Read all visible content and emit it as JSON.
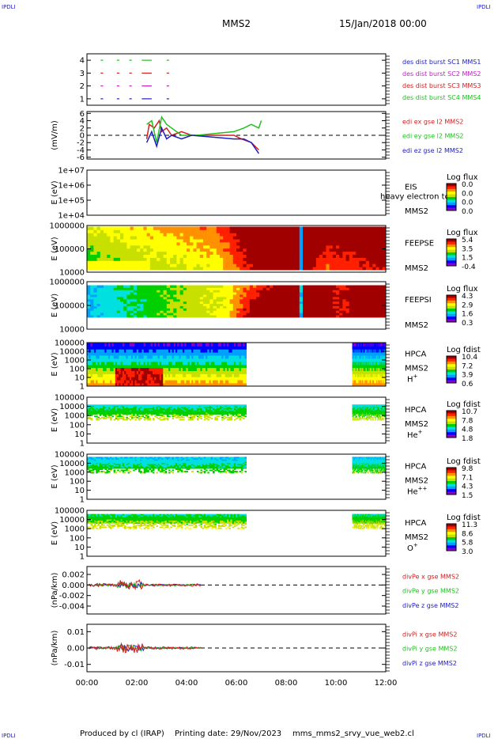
{
  "header": {
    "corner_tag": "IPDLI",
    "mission": "MMS2",
    "datetime": "15/Jan/2018 00:00"
  },
  "footer": {
    "produced_by": "Produced by cl (IRAP)",
    "printing_date": "Printing date: 29/Nov/2023",
    "script_name": "mms_mms2_srvy_vue_web2.cl"
  },
  "colorbar_colors": [
    "#8a00c8",
    "#0000ff",
    "#00a0ff",
    "#00e0e0",
    "#00d000",
    "#c8e000",
    "#ffff00",
    "#ff9000",
    "#ff2000",
    "#a00000"
  ],
  "time_axis": {
    "ticks": [
      "00:00",
      "02:00",
      "04:00",
      "06:00",
      "08:00",
      "10:00",
      "12:00"
    ],
    "range_hours": [
      0,
      12
    ]
  },
  "chart_data": [
    {
      "type": "scatter",
      "panel": "burst",
      "yticks": [
        "4",
        "3",
        "2",
        "1"
      ],
      "ylim": [
        0.5,
        4.5
      ],
      "legend": [
        {
          "label": "des dist burst SC1 MMS1",
          "color": "#2020c0"
        },
        {
          "label": "des dist burst SC2 MMS2",
          "color": "#c020c0"
        },
        {
          "label": "des dist burst SC3 MMS3",
          "color": "#d02020"
        },
        {
          "label": "des dist burst SC4 MMS4",
          "color": "#20c020"
        }
      ],
      "series": [
        {
          "level": 1,
          "color": "#2020c0",
          "segments": [
            [
              0.55,
              0.65
            ],
            [
              1.2,
              1.3
            ],
            [
              1.7,
              1.8
            ],
            [
              2.2,
              2.6
            ],
            [
              3.2,
              3.3
            ]
          ]
        },
        {
          "level": 2,
          "color": "#c020c0",
          "segments": [
            [
              0.55,
              0.65
            ],
            [
              1.2,
              1.3
            ],
            [
              1.7,
              1.8
            ],
            [
              2.2,
              2.6
            ],
            [
              3.2,
              3.3
            ]
          ]
        },
        {
          "level": 3,
          "color": "#d02020",
          "segments": [
            [
              0.55,
              0.65
            ],
            [
              1.2,
              1.3
            ],
            [
              1.7,
              1.8
            ],
            [
              2.2,
              2.6
            ],
            [
              3.2,
              3.3
            ]
          ]
        },
        {
          "level": 4,
          "color": "#20c020",
          "segments": [
            [
              0.55,
              0.65
            ],
            [
              1.2,
              1.3
            ],
            [
              1.7,
              1.8
            ],
            [
              2.2,
              2.6
            ],
            [
              3.2,
              3.3
            ]
          ]
        }
      ]
    },
    {
      "type": "line",
      "panel": "edi",
      "ylabel": "(mV/m)",
      "yticks": [
        "6",
        "4",
        "2",
        "0",
        "-2",
        "-4",
        "-6"
      ],
      "ylim": [
        -6.5,
        6.5
      ],
      "legend": [
        {
          "label": "edi ex gse l2 MMS2",
          "color": "#d02020"
        },
        {
          "label": "edi ey gse l2 MMS2",
          "color": "#20c020"
        },
        {
          "label": "edi ez gse l2 MMS2",
          "color": "#2020c0"
        }
      ],
      "series": [
        {
          "name": "ex",
          "color": "#d02020",
          "points": [
            [
              2.4,
              -1
            ],
            [
              2.5,
              3
            ],
            [
              2.7,
              2
            ],
            [
              2.9,
              4
            ],
            [
              3.0,
              1
            ],
            [
              3.2,
              2
            ],
            [
              3.4,
              0
            ],
            [
              3.8,
              1
            ],
            [
              4.2,
              0
            ],
            [
              5.9,
              0
            ],
            [
              6.2,
              -1
            ],
            [
              6.6,
              -2
            ],
            [
              6.9,
              -4
            ]
          ]
        },
        {
          "name": "ey",
          "color": "#20c020",
          "points": [
            [
              2.4,
              3
            ],
            [
              2.6,
              4
            ],
            [
              2.8,
              -2
            ],
            [
              3.0,
              5
            ],
            [
              3.2,
              3
            ],
            [
              3.4,
              2
            ],
            [
              3.8,
              0
            ],
            [
              4.4,
              0
            ],
            [
              5.9,
              1
            ],
            [
              6.3,
              2
            ],
            [
              6.6,
              3
            ],
            [
              6.9,
              2
            ],
            [
              7.0,
              4
            ]
          ]
        },
        {
          "name": "ez",
          "color": "#2020c0",
          "points": [
            [
              2.4,
              -2
            ],
            [
              2.6,
              1
            ],
            [
              2.8,
              -3
            ],
            [
              3.0,
              2
            ],
            [
              3.2,
              -1
            ],
            [
              3.4,
              0
            ],
            [
              3.8,
              -1
            ],
            [
              4.2,
              0
            ],
            [
              5.9,
              -1
            ],
            [
              6.3,
              -1
            ],
            [
              6.6,
              -2
            ],
            [
              6.9,
              -5
            ]
          ]
        }
      ]
    },
    {
      "type": "heatmap",
      "panel": "eis",
      "ylabel": "E (eV)",
      "yticks": [
        "1e+07",
        "1e+06",
        "1e+05",
        "1e+04"
      ],
      "label": "EIS",
      "overlay": "heavy electron to",
      "sublabel": "MMS2",
      "colorbar_title": "Log flux",
      "colorbar_ticks": [
        "0.0",
        "0.0",
        "0.0",
        "0.0"
      ]
    },
    {
      "type": "heatmap",
      "panel": "feepse",
      "ylabel": "E (eV)",
      "yticks": [
        "1000000",
        "100000",
        "10000"
      ],
      "label": "FEEPSE",
      "sublabel": "MMS2",
      "colorbar_title": "Log flux",
      "colorbar_ticks": [
        "5.4",
        "3.5",
        "1.5",
        "-0.4"
      ]
    },
    {
      "type": "heatmap",
      "panel": "feepsi",
      "ylabel": "E (eV)",
      "yticks": [
        "1000000",
        "100000",
        "10000"
      ],
      "label": "FEEPSI",
      "sublabel": "MMS2",
      "colorbar_title": "Log flux",
      "colorbar_ticks": [
        "4.3",
        "2.9",
        "1.6",
        "0.3"
      ]
    },
    {
      "type": "heatmap",
      "panel": "hpca_h",
      "ylabel": "E (eV)",
      "yticks": [
        "100000",
        "10000",
        "1000",
        "100",
        "10",
        "1"
      ],
      "label": "HPCA",
      "sublabel": "MMS2",
      "species": "H",
      "species_charge": "+",
      "colorbar_title": "Log fdist",
      "colorbar_ticks": [
        "10.4",
        "7.2",
        "3.9",
        "0.6"
      ]
    },
    {
      "type": "heatmap",
      "panel": "hpca_he",
      "ylabel": "E (eV)",
      "yticks": [
        "100000",
        "10000",
        "1000",
        "100",
        "10",
        "1"
      ],
      "label": "HPCA",
      "sublabel": "MMS2",
      "species": "He",
      "species_charge": "+",
      "colorbar_title": "Log fdist",
      "colorbar_ticks": [
        "10.7",
        "7.8",
        "4.8",
        "1.8"
      ]
    },
    {
      "type": "heatmap",
      "panel": "hpca_hepp",
      "ylabel": "E (eV)",
      "yticks": [
        "100000",
        "10000",
        "1000",
        "100",
        "10",
        "1"
      ],
      "label": "HPCA",
      "sublabel": "MMS2",
      "species": "He",
      "species_charge": "++",
      "colorbar_title": "Log fdist",
      "colorbar_ticks": [
        "9.8",
        "7.1",
        "4.3",
        "1.5"
      ]
    },
    {
      "type": "heatmap",
      "panel": "hpca_o",
      "ylabel": "E (eV)",
      "yticks": [
        "100000",
        "10000",
        "1000",
        "100",
        "10",
        "1"
      ],
      "label": "HPCA",
      "sublabel": "MMS2",
      "species": "O",
      "species_charge": "+",
      "colorbar_title": "Log fdist",
      "colorbar_ticks": [
        "11.3",
        "8.6",
        "5.8",
        "3.0"
      ]
    },
    {
      "type": "line",
      "panel": "divpe",
      "ylabel": "(nPa/km)",
      "yticks": [
        "0.002",
        "0.000",
        "-0.002",
        "-0.004"
      ],
      "ylim": [
        -0.0055,
        0.0035
      ],
      "legend": [
        {
          "label": "divPe x gse MMS2",
          "color": "#d02020"
        },
        {
          "label": "divPe y gse MMS2",
          "color": "#20c020"
        },
        {
          "label": "divPe z gse MMS2",
          "color": "#2020c0"
        }
      ]
    },
    {
      "type": "line",
      "panel": "divpi",
      "ylabel": "(nPa/km)",
      "yticks": [
        "0.01",
        "0.00",
        "-0.01"
      ],
      "ylim": [
        -0.0145,
        0.0145
      ],
      "legend": [
        {
          "label": "divPi x gse MMS2",
          "color": "#d02020"
        },
        {
          "label": "divPi y gse MMS2",
          "color": "#20c020"
        },
        {
          "label": "divPi z gse MMS2",
          "color": "#2020c0"
        }
      ]
    }
  ]
}
